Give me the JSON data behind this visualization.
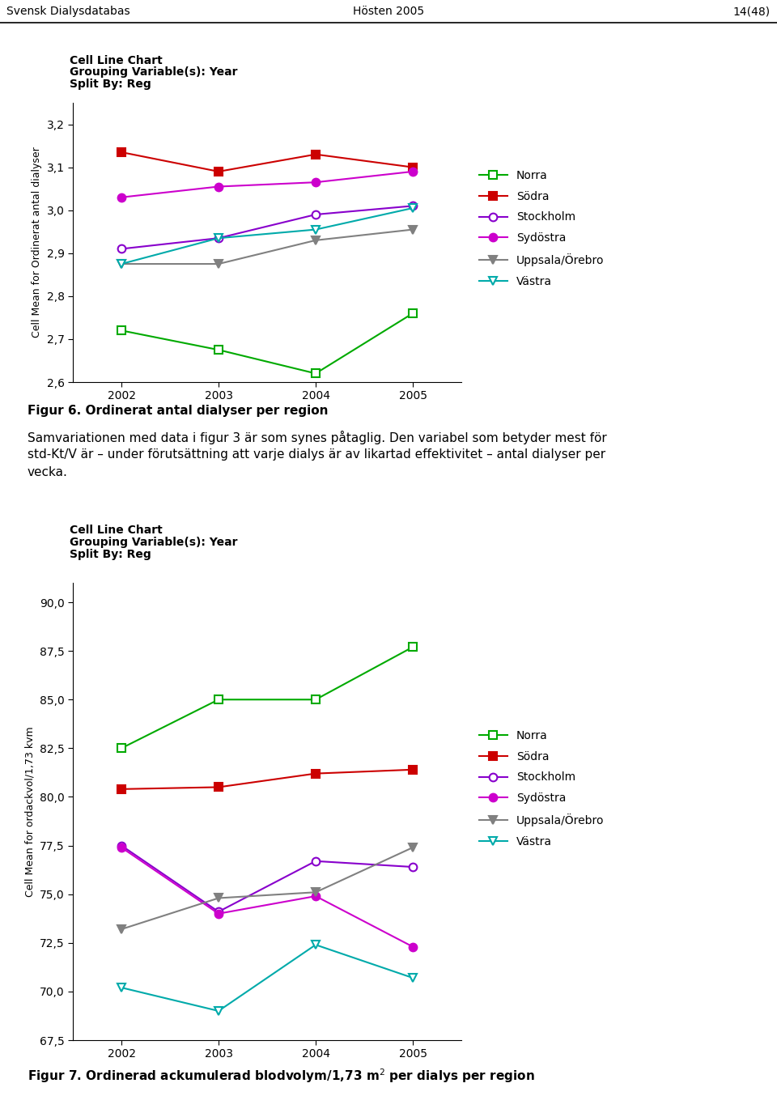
{
  "header_left": "Svensk Dialysdatabas",
  "header_center": "Hösten 2005",
  "header_right": "14(48)",
  "chart1": {
    "subtitle_line1": "Cell Line Chart",
    "subtitle_line2": "Grouping Variable(s): Year",
    "subtitle_line3": "Split By: Reg",
    "ylabel": "Cell Mean for Ordinerat antal dialyser",
    "years": [
      2002,
      2003,
      2004,
      2005
    ],
    "ylim": [
      2.6,
      3.25
    ],
    "yticks": [
      2.6,
      2.7,
      2.8,
      2.9,
      3.0,
      3.1,
      3.2
    ],
    "series": {
      "Norra": {
        "values": [
          2.72,
          2.675,
          2.62,
          2.76
        ],
        "color": "#00aa00",
        "marker": "s",
        "filled": false
      },
      "Södra": {
        "values": [
          3.135,
          3.09,
          3.13,
          3.1
        ],
        "color": "#cc0000",
        "marker": "s",
        "filled": true
      },
      "Stockholm": {
        "values": [
          2.91,
          2.935,
          2.99,
          3.01
        ],
        "color": "#8800cc",
        "marker": "o",
        "filled": false
      },
      "Sydöstra": {
        "values": [
          3.03,
          3.055,
          3.065,
          3.09
        ],
        "color": "#cc00cc",
        "marker": "o",
        "filled": true
      },
      "Uppsala/Örebro": {
        "values": [
          2.875,
          2.875,
          2.93,
          2.955
        ],
        "color": "#808080",
        "marker": "v",
        "filled": true
      },
      "Västra": {
        "values": [
          2.875,
          2.935,
          2.955,
          3.005
        ],
        "color": "#00aaaa",
        "marker": "v",
        "filled": false
      }
    }
  },
  "caption1": "Figur 6. Ordinerat antal dialyser per region",
  "body_text_lines": [
    "Samvariationen med data i figur 3 är som synes påtaglig. Den variabel som betyder mest för",
    "std-Kt/V är – under förutsättning att varje dialys är av likartad effektivitet – antal dialyser per",
    "vecka."
  ],
  "chart2": {
    "subtitle_line1": "Cell Line Chart",
    "subtitle_line2": "Grouping Variable(s): Year",
    "subtitle_line3": "Split By: Reg",
    "ylabel": "Cell Mean for ordackvol/1,73 kvm",
    "years": [
      2002,
      2003,
      2004,
      2005
    ],
    "ylim": [
      67.5,
      91.0
    ],
    "yticks": [
      67.5,
      70.0,
      72.5,
      75.0,
      77.5,
      80.0,
      82.5,
      85.0,
      87.5,
      90.0
    ],
    "series": {
      "Norra": {
        "values": [
          82.5,
          85.0,
          85.0,
          87.7
        ],
        "color": "#00aa00",
        "marker": "s",
        "filled": false
      },
      "Södra": {
        "values": [
          80.4,
          80.5,
          81.2,
          81.4
        ],
        "color": "#cc0000",
        "marker": "s",
        "filled": true
      },
      "Stockholm": {
        "values": [
          77.5,
          74.1,
          76.7,
          76.4
        ],
        "color": "#8800cc",
        "marker": "o",
        "filled": false
      },
      "Sydöstra": {
        "values": [
          77.4,
          74.0,
          74.9,
          72.3
        ],
        "color": "#cc00cc",
        "marker": "o",
        "filled": true
      },
      "Uppsala/Örebro": {
        "values": [
          73.2,
          74.8,
          75.1,
          77.4
        ],
        "color": "#808080",
        "marker": "v",
        "filled": true
      },
      "Västra": {
        "values": [
          70.2,
          69.0,
          72.4,
          70.7
        ],
        "color": "#00aaaa",
        "marker": "v",
        "filled": false
      }
    }
  },
  "caption2_part1": "Figur 7. Ordinerad ackumulerad blodvolym/1,73 m",
  "caption2_super": "2",
  "caption2_part2": " per dialys per region"
}
